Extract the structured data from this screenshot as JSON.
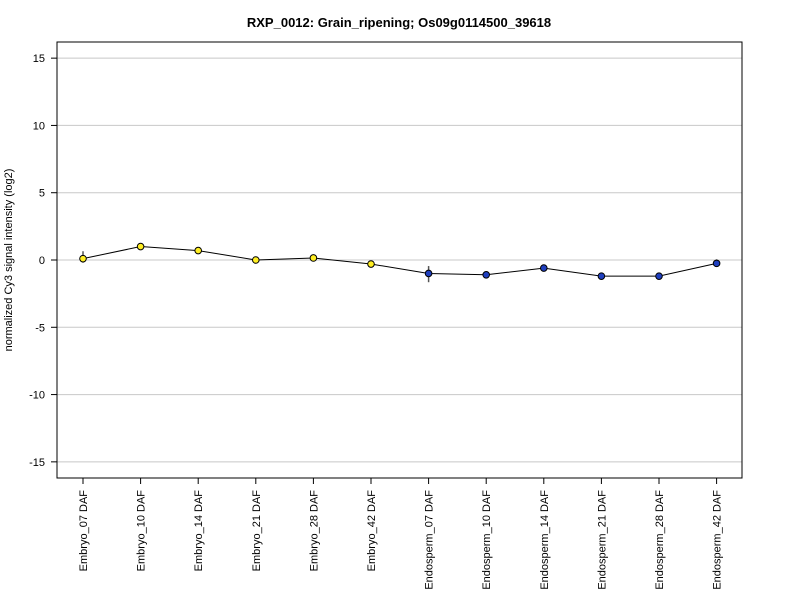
{
  "chart_data": {
    "type": "line",
    "title": "RXP_0012: Grain_ripening; Os09g0114500_39618",
    "xlabel": "",
    "ylabel": "normalized Cy3 signal intensity (log2)",
    "categories": [
      "Embryo_07 DAF",
      "Embryo_10 DAF",
      "Embryo_14 DAF",
      "Embryo_21 DAF",
      "Embryo_28 DAF",
      "Embryo_42 DAF",
      "Endosperm_07 DAF",
      "Endosperm_10 DAF",
      "Endosperm_14 DAF",
      "Endosperm_21 DAF",
      "Endosperm_28 DAF",
      "Endosperm_42 DAF"
    ],
    "values": [
      0.1,
      1.0,
      0.7,
      0.0,
      0.15,
      -0.3,
      -1.0,
      -1.1,
      -0.6,
      -1.2,
      -1.2,
      -0.25
    ],
    "error_low": [
      -0.2,
      0.9,
      0.6,
      -0.1,
      0.05,
      -0.4,
      -1.65,
      -1.3,
      -0.8,
      -1.4,
      -1.3,
      -0.45
    ],
    "error_high": [
      0.65,
      1.1,
      0.8,
      0.1,
      0.25,
      -0.2,
      -0.45,
      -0.9,
      -0.4,
      -1.0,
      -1.1,
      0.05
    ],
    "point_colors": [
      "#ffee22",
      "#ffee22",
      "#ffee22",
      "#ffee22",
      "#ffee22",
      "#ffee22",
      "#1f3fbf",
      "#1f3fbf",
      "#1f3fbf",
      "#1f3fbf",
      "#1f3fbf",
      "#1f3fbf"
    ],
    "ylim": [
      -16.2,
      16.2
    ],
    "yticks": [
      -15,
      -10,
      -5,
      0,
      5,
      10,
      15
    ],
    "grid": true,
    "line_color": "#000000"
  }
}
